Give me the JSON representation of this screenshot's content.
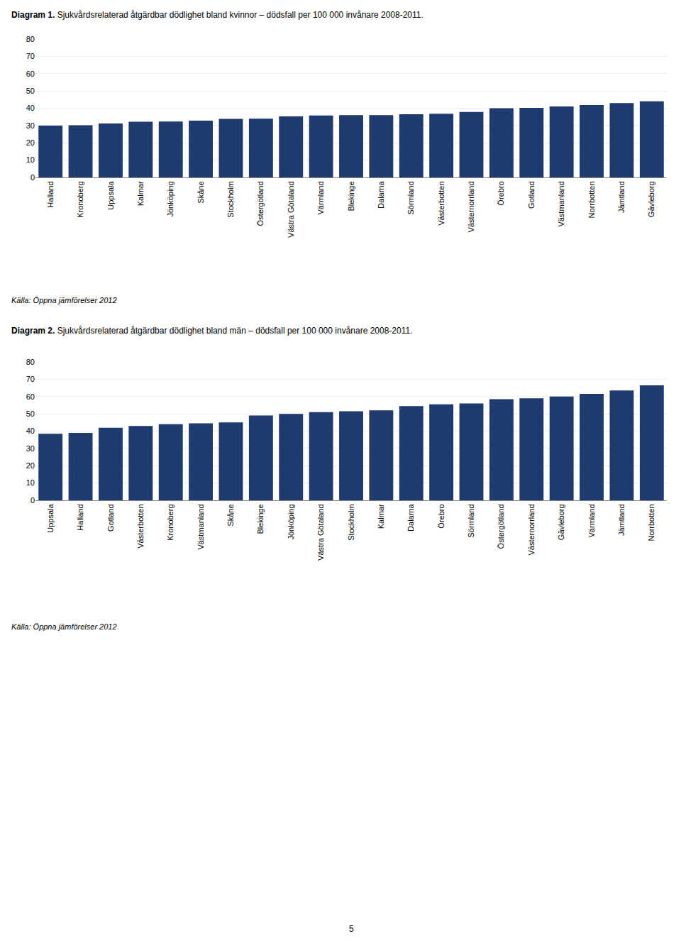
{
  "chart_data": [
    {
      "type": "bar",
      "title": "Diagram 1. Sjukvårdsrelaterad åtgärdbar dödlighet bland kvinnor – dödsfall per 100 000 invånare 2008-2011.",
      "categories": [
        "Halland",
        "Kronoberg",
        "Uppsala",
        "Kalmar",
        "Jönköping",
        "Skåne",
        "Stockholm",
        "Östergötland",
        "Västra Götaland",
        "Värmland",
        "Blekinge",
        "Dalarna",
        "Sörmland",
        "Västerbotten",
        "Västernorrland",
        "Örebro",
        "Gotland",
        "Västmanland",
        "Norrbotten",
        "Jämtland",
        "Gävleborg"
      ],
      "values": [
        30.0,
        30.2,
        31.2,
        32.2,
        32.3,
        32.8,
        33.8,
        34.0,
        35.3,
        35.8,
        36.0,
        36.0,
        36.5,
        36.8,
        37.8,
        40.0,
        40.2,
        41.0,
        41.8,
        43.0,
        44.0
      ],
      "color": "#1e3a6e",
      "ylim": [
        0,
        80
      ],
      "yticks": [
        0,
        10,
        20,
        30,
        40,
        50,
        60,
        70,
        80
      ],
      "grid": true,
      "annotations": [
        "Källa: Öppna jämförelser 2012"
      ]
    },
    {
      "type": "bar",
      "title": "Diagram 2. Sjukvårdsrelaterad åtgärdbar dödlighet bland män – dödsfall per 100 000 invånare 2008-2011.",
      "categories": [
        "Uppsala",
        "Halland",
        "Gotland",
        "Västerbotten",
        "Kronoberg",
        "Västmanland",
        "Skåne",
        "Blekinge",
        "Jönköping",
        "Västra Götaland",
        "Stockholm",
        "Kalmar",
        "Dalarna",
        "Örebro",
        "Sörmland",
        "Östergötland",
        "Västernorrland",
        "Gävleborg",
        "Värmland",
        "Jämtland",
        "Norrbotten"
      ],
      "values": [
        38.5,
        39.0,
        42.0,
        43.0,
        44.0,
        44.5,
        45.0,
        49.0,
        50.0,
        51.0,
        51.5,
        52.0,
        54.5,
        55.5,
        56.0,
        58.5,
        59.0,
        60.0,
        61.5,
        63.5,
        66.5
      ],
      "color": "#1e3a6e",
      "ylim": [
        0,
        80
      ],
      "yticks": [
        0,
        10,
        20,
        30,
        40,
        50,
        60,
        70,
        80
      ],
      "grid": true,
      "annotations": [
        "Källa: Öppna jämförelser 2012",
        "5"
      ]
    }
  ]
}
